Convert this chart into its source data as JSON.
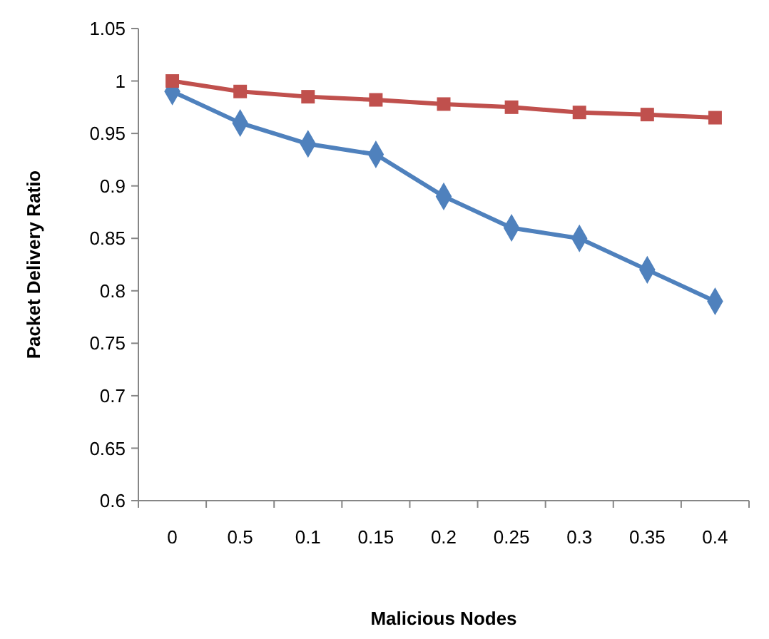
{
  "chart_data": {
    "type": "line",
    "xlabel": "Malicious Nodes",
    "ylabel": "Packet Delivery Ratio",
    "categories": [
      "0",
      "0.5",
      "0.1",
      "0.15",
      "0.2",
      "0.25",
      "0.3",
      "0.35",
      "0.4"
    ],
    "series": [
      {
        "color": "#4f81bd",
        "marker": "diamond",
        "values": [
          0.99,
          0.96,
          0.94,
          0.93,
          0.89,
          0.86,
          0.85,
          0.82,
          0.79
        ]
      },
      {
        "color": "#c0504d",
        "marker": "square",
        "values": [
          1,
          0.99,
          0.985,
          0.982,
          0.978,
          0.975,
          0.97,
          0.968,
          0.965
        ]
      }
    ],
    "ylim": [
      0.6,
      1.05
    ],
    "yticks": [
      0.6,
      0.65,
      0.7,
      0.75,
      0.8,
      0.85,
      0.9,
      0.95,
      1,
      1.05
    ],
    "grid": false
  }
}
